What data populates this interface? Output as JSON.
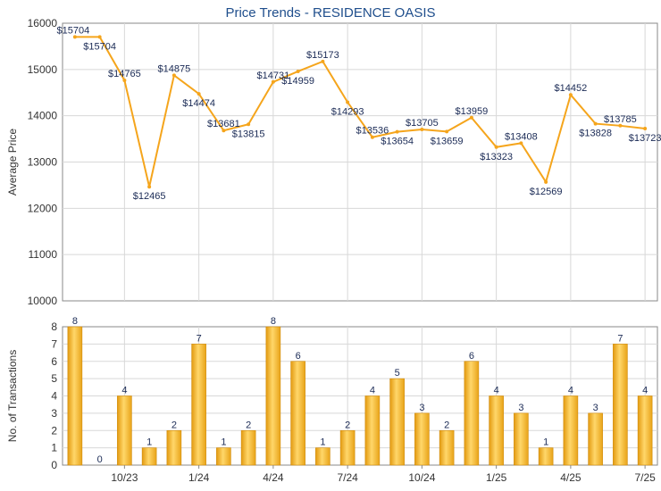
{
  "chart_data": [
    {
      "type": "line",
      "title": "Price Trends - RESIDENCE OASIS",
      "ylabel": "Average Price",
      "ylim": [
        10000,
        16000
      ],
      "yticks": [
        10000,
        11000,
        12000,
        13000,
        14000,
        15000,
        16000
      ],
      "grid": true,
      "color": "#f5a51c",
      "series": [
        {
          "values": [
            15704,
            15704,
            14765,
            12465,
            14875,
            14474,
            13681,
            13815,
            14731,
            14959,
            15173,
            14293,
            13536,
            13654,
            13705,
            13659,
            13959,
            13323,
            13408,
            12569,
            14452,
            13828,
            13785,
            13723
          ],
          "labels": [
            "$15704",
            "$15704",
            "$14765",
            "$12465",
            "$14875",
            "$14474",
            "$13681",
            "$13815",
            "$14731",
            "$14959",
            "$15173",
            "$14293",
            "$13536",
            "$13654",
            "$13705",
            "$13659",
            "$13959",
            "$13323",
            "$13408",
            "$12569",
            "$14452",
            "$13828",
            "$13785",
            "$13723"
          ]
        }
      ]
    },
    {
      "type": "bar",
      "ylabel": "No. of Transactions",
      "ylim": [
        0,
        8
      ],
      "yticks": [
        0,
        1,
        2,
        3,
        4,
        5,
        6,
        7,
        8
      ],
      "grid": true,
      "color": "#f2b224",
      "values": [
        8,
        0,
        4,
        1,
        2,
        7,
        1,
        2,
        8,
        6,
        1,
        2,
        4,
        5,
        3,
        2,
        6,
        4,
        3,
        1,
        4,
        3,
        7,
        4
      ],
      "x_tick_labels": [
        "10/23",
        "1/24",
        "4/24",
        "7/24",
        "10/24",
        "1/25",
        "4/25",
        "7/25"
      ]
    }
  ]
}
